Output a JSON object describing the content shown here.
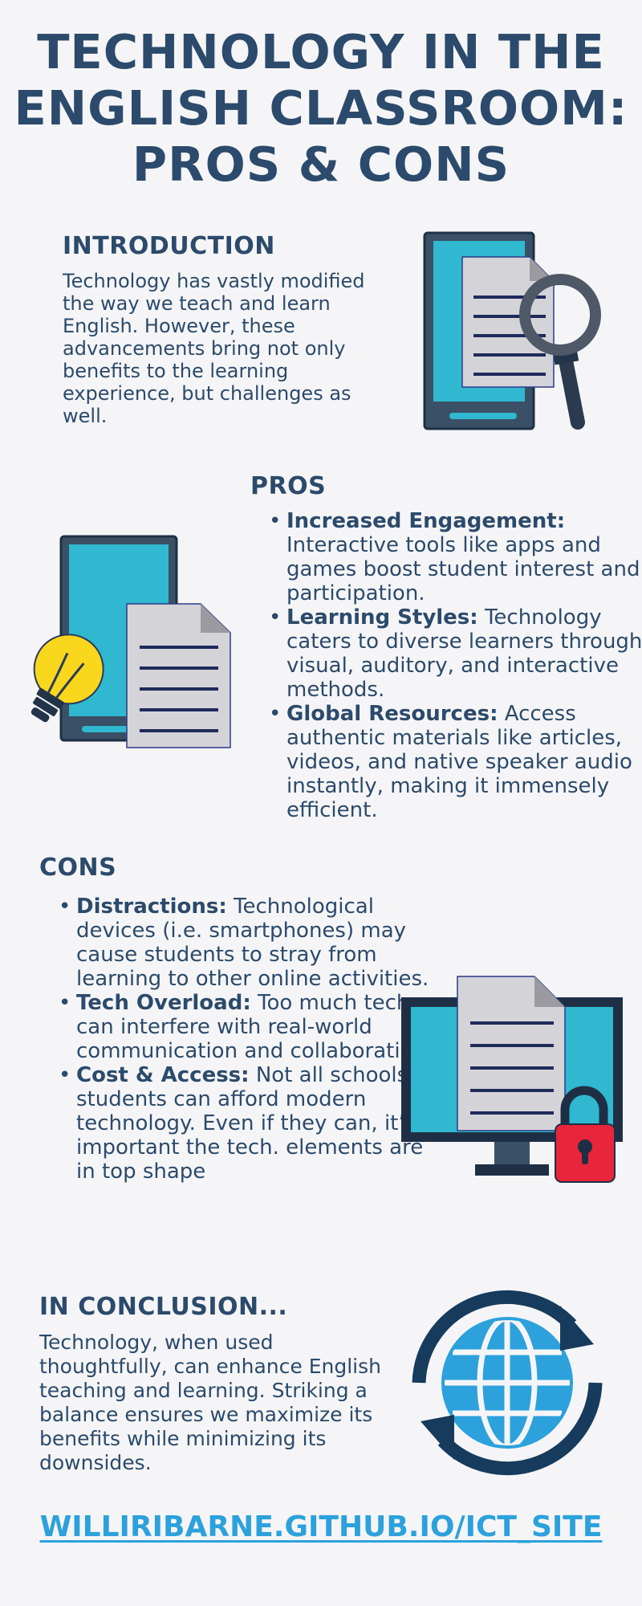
{
  "title": "TECHNOLOGY IN THE ENGLISH CLASSROOM: PROS & CONS",
  "introduction": {
    "heading": "INTRODUCTION",
    "text": "Technology has vastly modified the way we teach and learn English. However, these advancements bring not only benefits to the learning experience, but challenges as well."
  },
  "pros": {
    "heading": "PROS",
    "items": [
      {
        "term": "Increased Engagement:",
        "desc": " Interactive tools like apps and games boost student interest and participation."
      },
      {
        "term": "Learning Styles:",
        "desc": " Technology caters to diverse learners through visual, auditory, and interactive methods."
      },
      {
        "term": "Global Resources:",
        "desc": " Access authentic materials like articles, videos, and native speaker audio instantly, making it immensely efficient."
      }
    ]
  },
  "cons": {
    "heading": "CONS",
    "items": [
      {
        "term": "Distractions:",
        "desc": " Technological devices (i.e. smartphones) may cause students to stray from learning to other online activities."
      },
      {
        "term": "Tech Overload:",
        "desc": " Too much tech can interfere with real-world communication and collaboration."
      },
      {
        "term": "Cost & Access:",
        "desc": " Not all schools or students can afford modern technology. Even if they can, it’s important the tech. elements are in top shape"
      }
    ]
  },
  "conclusion": {
    "heading": "IN CONCLUSION...",
    "text": "Technology, when used thoughtfully, can enhance English teaching and learning. Striking a balance ensures we maximize its benefits while minimizing its downsides."
  },
  "footer": {
    "link": "WILLIRIBARNE.GITHUB.IO/ICT_SITE"
  },
  "icons": [
    "tablet-document-magnifier-icon",
    "tablet-document-lightbulb-icon",
    "monitor-document-lock-icon",
    "globe-sync-icon"
  ],
  "colors": {
    "primary": "#2c4a6b",
    "accent": "#2ca1dc",
    "screen": "#2fb8cf",
    "frame": "#3a5066",
    "bulb": "#f9d71c",
    "lock": "#e8253a"
  }
}
